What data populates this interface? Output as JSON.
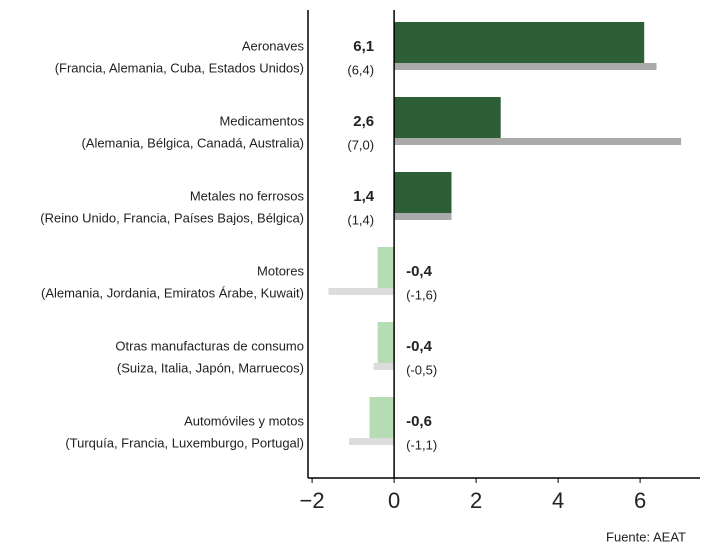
{
  "chart_data": {
    "type": "hbar",
    "categories": [
      "Aeronaves",
      "Medicamentos",
      "Metales no ferrosos",
      "Motores",
      "Otras manufacturas de consumo",
      "Automóviles y motos"
    ],
    "category_details": [
      "(Francia, Alemania, Cuba, Estados Unidos)",
      "(Alemania, Bélgica, Canadá, Australia)",
      "(Reino Unido, Francia, Países Bajos, Bélgica)",
      "(Alemania, Jordania, Emiratos Árabe, Kuwait)",
      "(Suiza, Italia, Japón, Marruecos)",
      "(Turquía, Francia, Luxemburgo, Portugal)"
    ],
    "series": [
      {
        "color": "#2e5e35",
        "negative_color": "#b5dcb2",
        "values": [
          6.1,
          2.6,
          1.4,
          -0.4,
          -0.4,
          -0.6
        ],
        "value_labels": [
          "6,1",
          "2,6",
          "1,4",
          "-0,4",
          "-0,4",
          "-0,6"
        ]
      },
      {
        "color": "#aaaaaa",
        "negative_color": "#dcdcdc",
        "values": [
          6.4,
          7.0,
          1.4,
          -1.6,
          -0.5,
          -1.1
        ],
        "value_labels": [
          "(6,4)",
          "(7,0)",
          "(1,4)",
          "(-1,6)",
          "(-0,5)",
          "(-1,1)"
        ]
      }
    ],
    "xlim": [
      -2.1,
      7.2
    ],
    "xticks": [
      {
        "value": -2,
        "label": "−2"
      },
      0,
      2,
      4,
      6
    ],
    "source": "Fuente: AEAT"
  }
}
